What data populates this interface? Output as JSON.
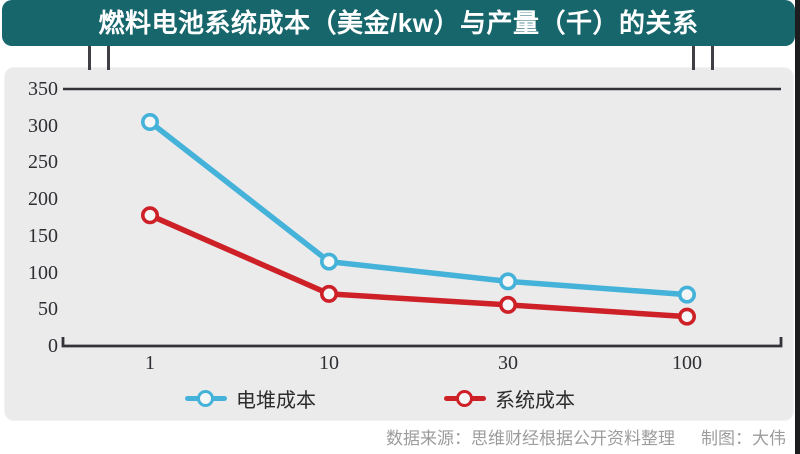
{
  "header": {
    "title": "燃料电池系统成本（美金/kw）与产量（千）的关系",
    "banner_color": "#16666c"
  },
  "chart_data": {
    "type": "line",
    "categories": [
      "1",
      "10",
      "30",
      "100"
    ],
    "series": [
      {
        "name": "电堆成本",
        "color": "#45b2d9",
        "values": [
          305,
          115,
          88,
          70
        ]
      },
      {
        "name": "系统成本",
        "color": "#cd2027",
        "values": [
          178,
          71,
          56,
          40
        ]
      }
    ],
    "title": "燃料电池系统成本（美金/kw）与产量（千）的关系",
    "xlabel": "",
    "ylabel": "",
    "ylim": [
      0,
      350
    ],
    "yticks": [
      0,
      50,
      100,
      150,
      200,
      250,
      300,
      350
    ],
    "grid": false,
    "marker": "open-circle",
    "legend_position": "bottom",
    "axis_color": "#33333a",
    "panel_color": "#ebebec"
  },
  "footer": {
    "source": "数据来源：思维财经根据公开资料整理",
    "credit": "制图：大伟"
  }
}
